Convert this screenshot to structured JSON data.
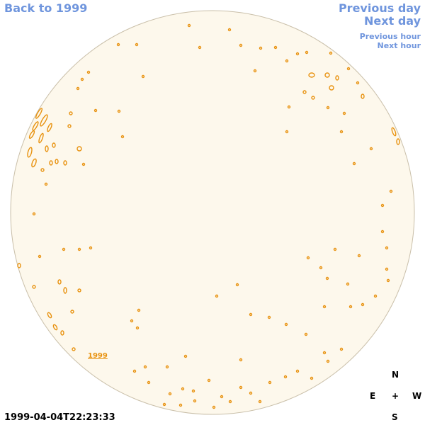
{
  "nav": {
    "back": "Back to 1999",
    "previous_day": "Previous day",
    "next_day": "Next day",
    "previous_hour": "Previous hour",
    "next_hour": "Next hour"
  },
  "disk": {
    "fill_color": "#fdf8ec",
    "edge_color": "#c9bfa9",
    "contour_color": "#e8920f"
  },
  "year_link": "1999",
  "timestamp": "1999-04-04T22:23:33",
  "compass": {
    "north": "N",
    "east": "E",
    "center": "+",
    "west": "W",
    "south": "S"
  }
}
